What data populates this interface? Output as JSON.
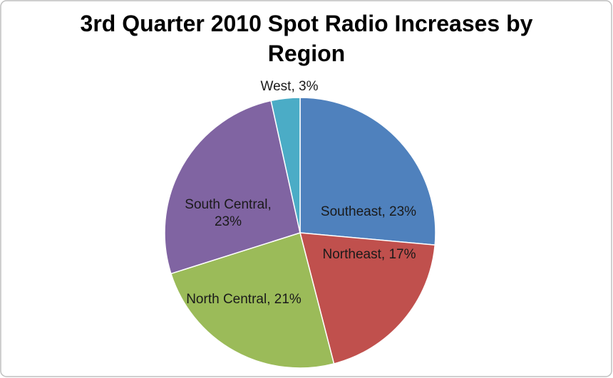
{
  "chart_data": {
    "type": "pie",
    "title": "3rd Quarter 2010 Spot Radio Increases by Region",
    "values": [
      23,
      17,
      21,
      23,
      3
    ],
    "value_labels": [
      "Southeast, 23%",
      "Northeast, 17%",
      "North Central, 21%",
      "South Central, 23%",
      "West, 3%"
    ],
    "colors": [
      "#4F81BD",
      "#C0504D",
      "#9BBB59",
      "#8064A2",
      "#4BACC6"
    ]
  }
}
